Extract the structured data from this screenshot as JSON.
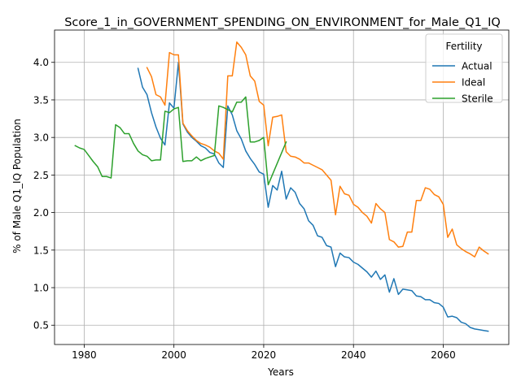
{
  "chart_data": {
    "type": "line",
    "title": "Score_1_in_GOVERNMENT_SPENDING_ON_ENVIRONMENT_for_Male_Q1_IQ",
    "xlabel": "Years",
    "ylabel": "% of Male Q1_IQ Population",
    "xlim": [
      1973.4,
      2074.6
    ],
    "ylim": [
      0.243,
      4.43
    ],
    "xticks": [
      1980,
      2000,
      2020,
      2040,
      2060
    ],
    "yticks": [
      0.5,
      1.0,
      1.5,
      2.0,
      2.5,
      3.0,
      3.5,
      4.0
    ],
    "ytick_labels": [
      "0.5",
      "1.0",
      "1.5",
      "2.0",
      "2.5",
      "3.0",
      "3.5",
      "4.0"
    ],
    "grid": true,
    "legend": {
      "title": "Fertility",
      "position": "top-right"
    },
    "series": [
      {
        "name": "Actual",
        "color": "#1f77b4",
        "x": [
          1992,
          1993,
          1994,
          1995,
          1996,
          1997,
          1998,
          1999,
          2000,
          2001,
          2002,
          2003,
          2004,
          2005,
          2006,
          2007,
          2008,
          2009,
          2010,
          2011,
          2012,
          2013,
          2014,
          2015,
          2016,
          2017,
          2018,
          2019,
          2020,
          2021,
          2022,
          2023,
          2024,
          2025,
          2026,
          2027,
          2028,
          2029,
          2030,
          2031,
          2032,
          2033,
          2034,
          2035,
          2036,
          2037,
          2038,
          2039,
          2040,
          2041,
          2042,
          2043,
          2044,
          2045,
          2046,
          2047,
          2048,
          2049,
          2050,
          2051,
          2052,
          2053,
          2054,
          2055,
          2056,
          2057,
          2058,
          2059,
          2060,
          2061,
          2062,
          2063,
          2064,
          2065,
          2066,
          2067,
          2068,
          2069,
          2070
        ],
        "y": [
          3.92,
          3.67,
          3.57,
          3.33,
          3.14,
          2.99,
          2.9,
          3.46,
          3.39,
          4.0,
          3.18,
          3.07,
          3.0,
          2.95,
          2.89,
          2.86,
          2.8,
          2.78,
          2.66,
          2.6,
          3.42,
          3.3,
          3.09,
          2.98,
          2.82,
          2.72,
          2.64,
          2.54,
          2.51,
          2.07,
          2.36,
          2.3,
          2.55,
          2.18,
          2.33,
          2.27,
          2.12,
          2.05,
          1.89,
          1.83,
          1.69,
          1.67,
          1.56,
          1.54,
          1.28,
          1.46,
          1.41,
          1.4,
          1.34,
          1.31,
          1.26,
          1.21,
          1.14,
          1.22,
          1.11,
          1.17,
          0.94,
          1.12,
          0.91,
          0.98,
          0.97,
          0.96,
          0.89,
          0.88,
          0.84,
          0.84,
          0.8,
          0.79,
          0.74,
          0.61,
          0.62,
          0.6,
          0.54,
          0.52,
          0.47,
          0.45,
          0.44,
          0.43,
          0.42
        ]
      },
      {
        "name": "Ideal",
        "color": "#ff7f0e",
        "x": [
          1994,
          1995,
          1996,
          1997,
          1998,
          1999,
          2000,
          2001,
          2002,
          2003,
          2004,
          2005,
          2006,
          2007,
          2008,
          2009,
          2010,
          2011,
          2012,
          2013,
          2014,
          2015,
          2016,
          2017,
          2018,
          2019,
          2020,
          2021,
          2022,
          2023,
          2024,
          2025,
          2026,
          2027,
          2028,
          2029,
          2030,
          2031,
          2032,
          2033,
          2034,
          2035,
          2036,
          2037,
          2038,
          2039,
          2040,
          2041,
          2042,
          2043,
          2044,
          2045,
          2046,
          2047,
          2048,
          2049,
          2050,
          2051,
          2052,
          2053,
          2054,
          2055,
          2056,
          2057,
          2058,
          2059,
          2060,
          2061,
          2062,
          2063,
          2064,
          2065,
          2066,
          2067,
          2068,
          2069,
          2070
        ],
        "y": [
          3.93,
          3.81,
          3.57,
          3.54,
          3.43,
          4.13,
          4.1,
          4.1,
          3.19,
          3.09,
          3.02,
          2.96,
          2.92,
          2.9,
          2.87,
          2.82,
          2.79,
          2.71,
          3.82,
          3.82,
          4.27,
          4.2,
          4.1,
          3.82,
          3.75,
          3.48,
          3.43,
          2.89,
          3.27,
          3.28,
          3.3,
          2.81,
          2.75,
          2.74,
          2.71,
          2.66,
          2.66,
          2.63,
          2.6,
          2.57,
          2.5,
          2.43,
          1.97,
          2.35,
          2.25,
          2.23,
          2.11,
          2.07,
          2.0,
          1.95,
          1.86,
          2.12,
          2.05,
          2.0,
          1.64,
          1.61,
          1.54,
          1.55,
          1.74,
          1.74,
          2.16,
          2.16,
          2.33,
          2.31,
          2.24,
          2.21,
          2.11,
          1.67,
          1.78,
          1.57,
          1.52,
          1.48,
          1.45,
          1.41,
          1.54,
          1.49,
          1.45
        ]
      },
      {
        "name": "Sterile",
        "color": "#2ca02c",
        "x": [
          1978,
          1979,
          1980,
          1981,
          1982,
          1983,
          1984,
          1985,
          1986,
          1987,
          1988,
          1989,
          1990,
          1991,
          1992,
          1993,
          1994,
          1995,
          1996,
          1997,
          1998,
          1999,
          2000,
          2001,
          2002,
          2003,
          2004,
          2005,
          2006,
          2007,
          2008,
          2009,
          2010,
          2011,
          2012,
          2013,
          2014,
          2015,
          2016,
          2017,
          2018,
          2019,
          2020,
          2021,
          2025
        ],
        "y": [
          2.89,
          2.86,
          2.84,
          2.76,
          2.68,
          2.61,
          2.48,
          2.48,
          2.46,
          3.17,
          3.13,
          3.05,
          3.05,
          2.92,
          2.82,
          2.77,
          2.75,
          2.69,
          2.7,
          2.7,
          3.35,
          3.33,
          3.38,
          3.4,
          2.68,
          2.69,
          2.69,
          2.74,
          2.69,
          2.72,
          2.74,
          2.76,
          3.42,
          3.4,
          3.37,
          3.34,
          3.47,
          3.47,
          3.54,
          2.94,
          2.94,
          2.96,
          3.0,
          2.37,
          2.94
        ]
      }
    ]
  }
}
